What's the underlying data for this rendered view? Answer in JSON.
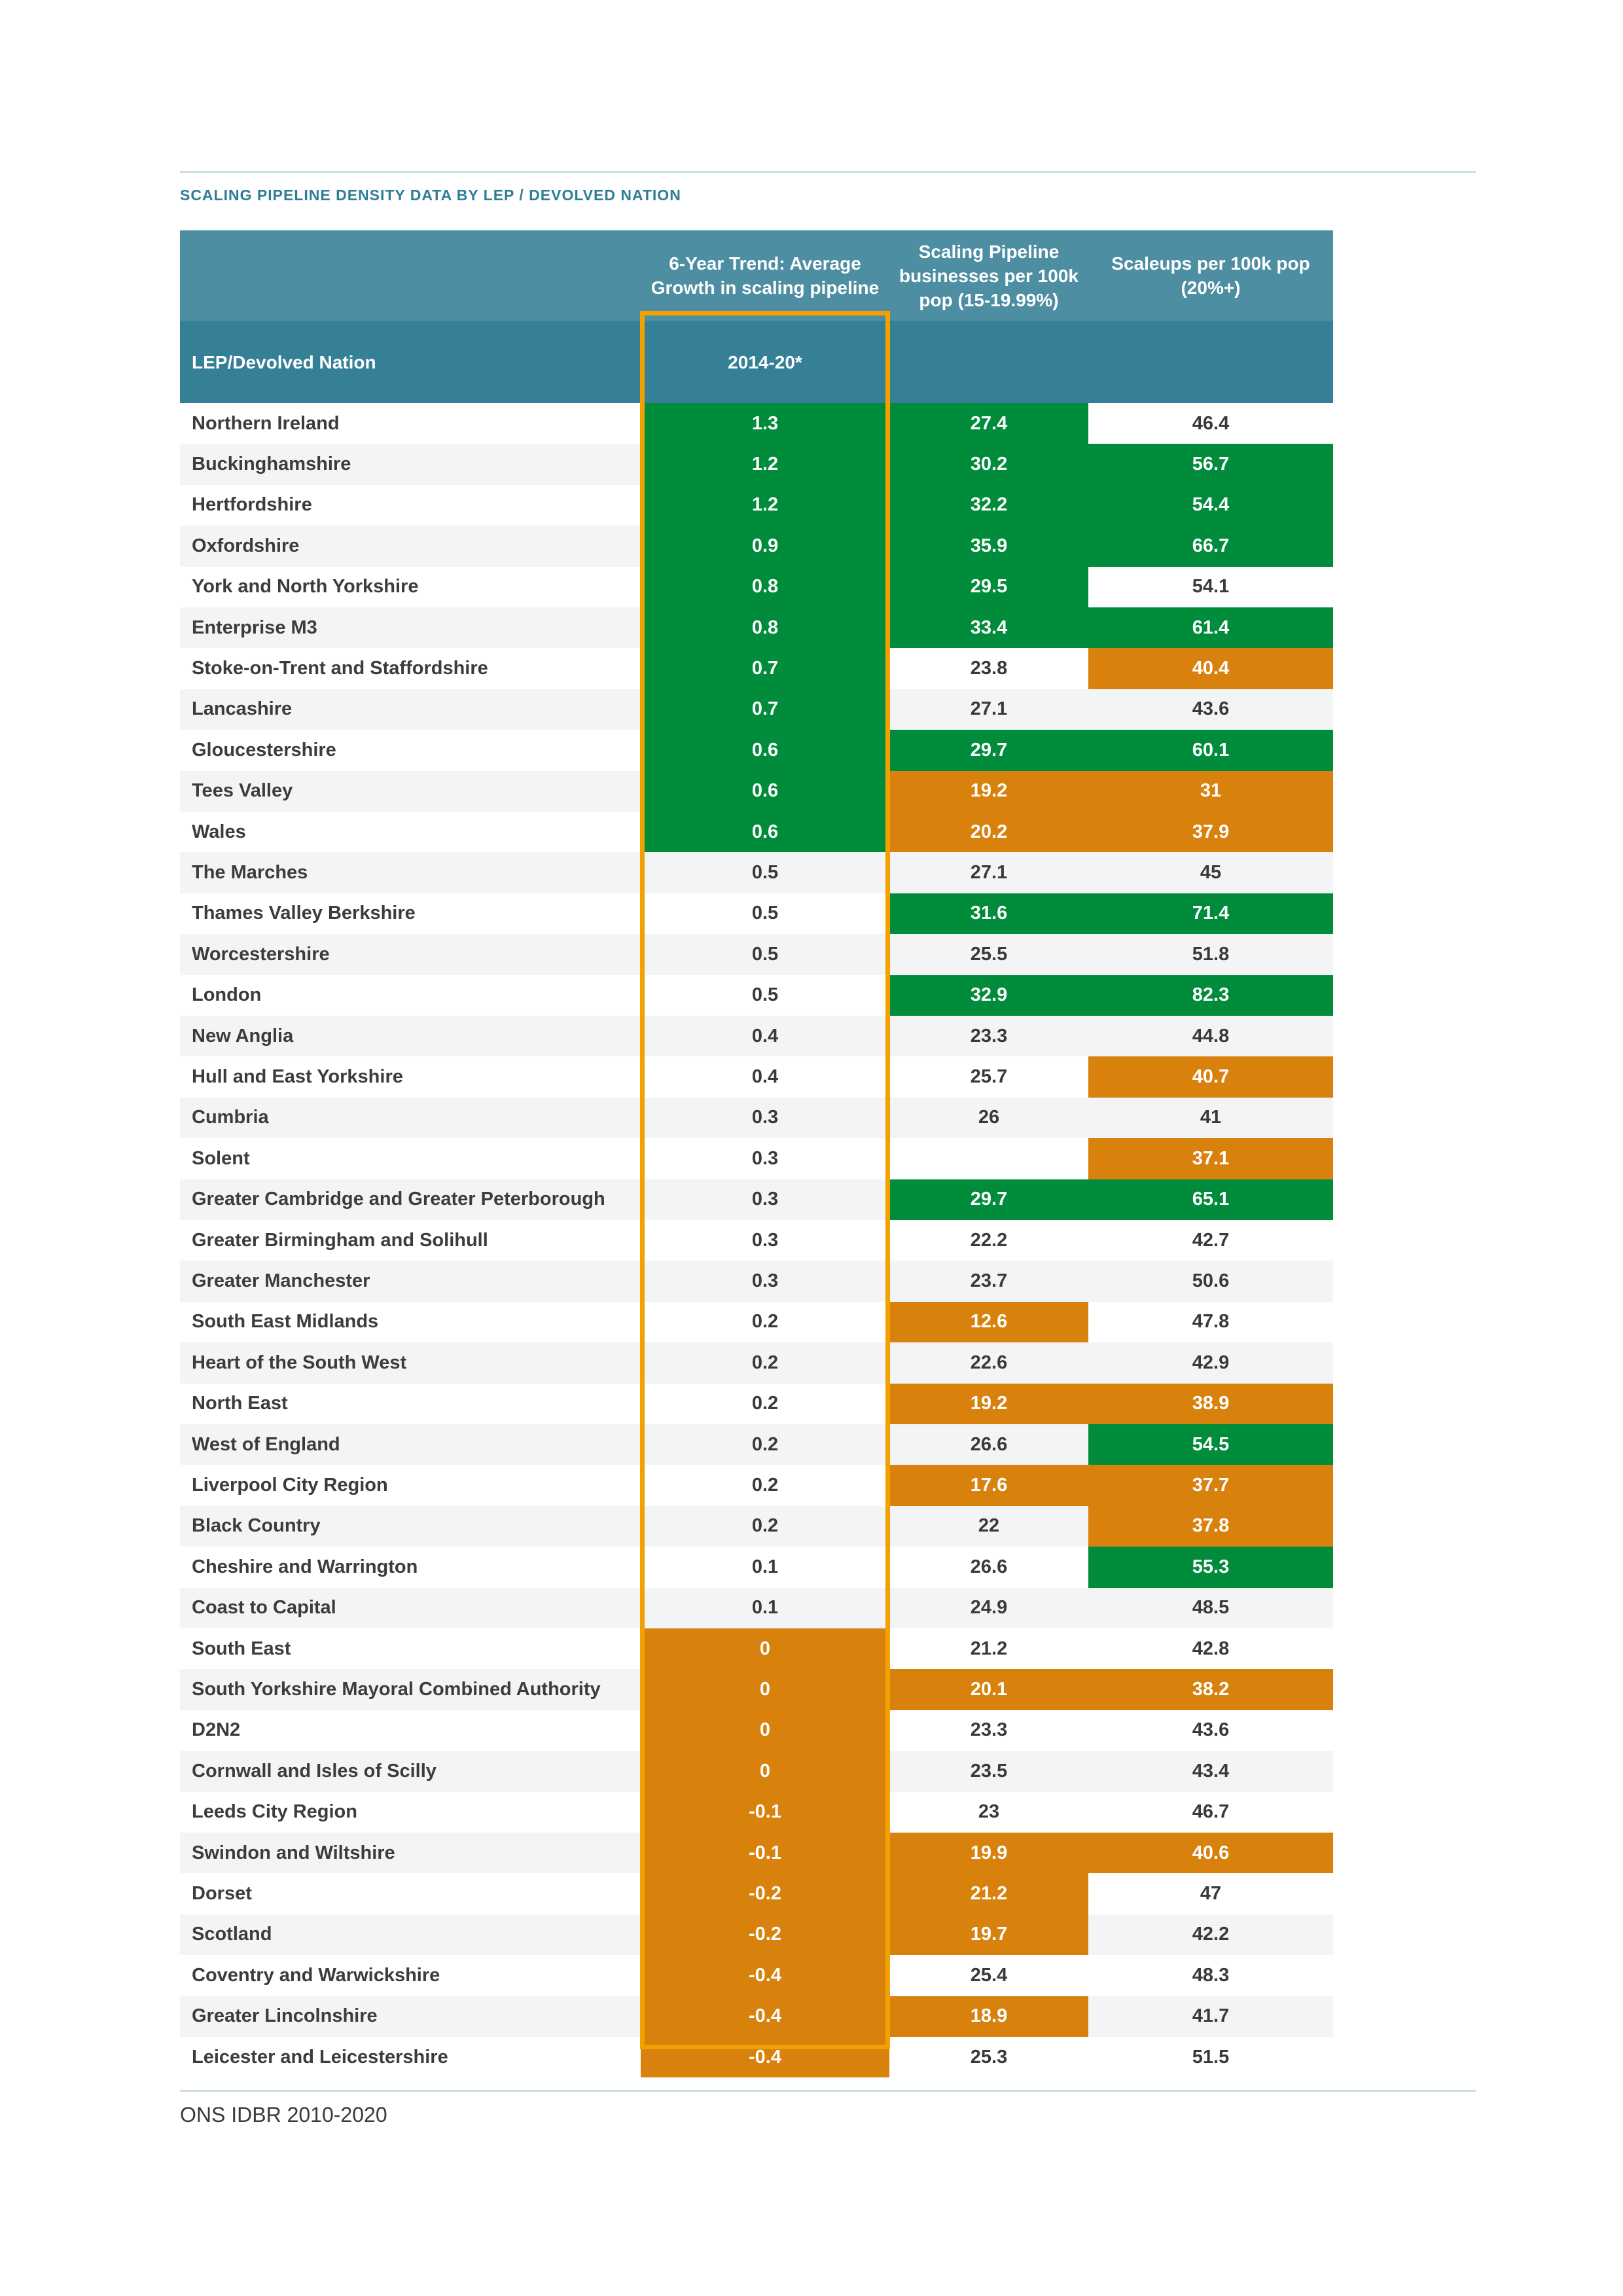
{
  "section_title": "SCALING PIPELINE DENSITY DATA BY LEP / DEVOLVED NATION",
  "header": {
    "col_trend": "6-Year Trend: Average Growth in scaling pipeline",
    "col_pipeline": "Scaling Pipeline businesses per 100k pop (15-19.99%)",
    "col_scaleups": "Scaleups per 100k pop (20%+)",
    "col_name_sub": "LEP/Devolved Nation",
    "col_trend_sub": "2014-20*"
  },
  "colors": {
    "green": "#008c3b",
    "orange": "#d8810c",
    "header_light": "#4e8ea2",
    "header_dark": "#357f97",
    "highlight_border": "#f2a100"
  },
  "rows": [
    {
      "name": "Northern Ireland",
      "trend": "1.3",
      "trend_c": "g",
      "pipeline": "27.4",
      "pipeline_c": "g",
      "scaleups": "46.4",
      "scaleups_c": "w"
    },
    {
      "name": "Buckinghamshire",
      "trend": "1.2",
      "trend_c": "g",
      "pipeline": "30.2",
      "pipeline_c": "g",
      "scaleups": "56.7",
      "scaleups_c": "g"
    },
    {
      "name": "Hertfordshire",
      "trend": "1.2",
      "trend_c": "g",
      "pipeline": "32.2",
      "pipeline_c": "g",
      "scaleups": "54.4",
      "scaleups_c": "g"
    },
    {
      "name": "Oxfordshire",
      "trend": "0.9",
      "trend_c": "g",
      "pipeline": "35.9",
      "pipeline_c": "g",
      "scaleups": "66.7",
      "scaleups_c": "g"
    },
    {
      "name": "York and North Yorkshire",
      "trend": "0.8",
      "trend_c": "g",
      "pipeline": "29.5",
      "pipeline_c": "g",
      "scaleups": "54.1",
      "scaleups_c": "w"
    },
    {
      "name": "Enterprise M3",
      "trend": "0.8",
      "trend_c": "g",
      "pipeline": "33.4",
      "pipeline_c": "g",
      "scaleups": "61.4",
      "scaleups_c": "g"
    },
    {
      "name": "Stoke-on-Trent and Staffordshire",
      "trend": "0.7",
      "trend_c": "g",
      "pipeline": "23.8",
      "pipeline_c": "w",
      "scaleups": "40.4",
      "scaleups_c": "o"
    },
    {
      "name": "Lancashire",
      "trend": "0.7",
      "trend_c": "g",
      "pipeline": "27.1",
      "pipeline_c": "w",
      "scaleups": "43.6",
      "scaleups_c": "w"
    },
    {
      "name": "Gloucestershire",
      "trend": "0.6",
      "trend_c": "g",
      "pipeline": "29.7",
      "pipeline_c": "g",
      "scaleups": "60.1",
      "scaleups_c": "g"
    },
    {
      "name": "Tees Valley",
      "trend": "0.6",
      "trend_c": "g",
      "pipeline": "19.2",
      "pipeline_c": "o",
      "scaleups": "31",
      "scaleups_c": "o"
    },
    {
      "name": "Wales",
      "trend": "0.6",
      "trend_c": "g",
      "pipeline": "20.2",
      "pipeline_c": "o",
      "scaleups": "37.9",
      "scaleups_c": "o"
    },
    {
      "name": "The Marches",
      "trend": "0.5",
      "trend_c": "w",
      "pipeline": "27.1",
      "pipeline_c": "w",
      "scaleups": "45",
      "scaleups_c": "w"
    },
    {
      "name": "Thames Valley Berkshire",
      "trend": "0.5",
      "trend_c": "w",
      "pipeline": "31.6",
      "pipeline_c": "g",
      "scaleups": "71.4",
      "scaleups_c": "g"
    },
    {
      "name": "Worcestershire",
      "trend": "0.5",
      "trend_c": "w",
      "pipeline": "25.5",
      "pipeline_c": "w",
      "scaleups": "51.8",
      "scaleups_c": "w"
    },
    {
      "name": "London",
      "trend": "0.5",
      "trend_c": "w",
      "pipeline": "32.9",
      "pipeline_c": "g",
      "scaleups": "82.3",
      "scaleups_c": "g"
    },
    {
      "name": "New Anglia",
      "trend": "0.4",
      "trend_c": "w",
      "pipeline": "23.3",
      "pipeline_c": "w",
      "scaleups": "44.8",
      "scaleups_c": "w"
    },
    {
      "name": "Hull and East Yorkshire",
      "trend": "0.4",
      "trend_c": "w",
      "pipeline": "25.7",
      "pipeline_c": "w",
      "scaleups": "40.7",
      "scaleups_c": "o"
    },
    {
      "name": "Cumbria",
      "trend": "0.3",
      "trend_c": "w",
      "pipeline": "26",
      "pipeline_c": "w",
      "scaleups": "41",
      "scaleups_c": "w"
    },
    {
      "name": "Solent",
      "trend": "0.3",
      "trend_c": "w",
      "pipeline": "",
      "pipeline_c": "w",
      "scaleups": "37.1",
      "scaleups_c": "o"
    },
    {
      "name": "Greater Cambridge and Greater Peterborough",
      "trend": "0.3",
      "trend_c": "w",
      "pipeline": "29.7",
      "pipeline_c": "g",
      "scaleups": "65.1",
      "scaleups_c": "g"
    },
    {
      "name": "Greater Birmingham and Solihull",
      "trend": "0.3",
      "trend_c": "w",
      "pipeline": "22.2",
      "pipeline_c": "w",
      "scaleups": "42.7",
      "scaleups_c": "w"
    },
    {
      "name": "Greater Manchester",
      "trend": "0.3",
      "trend_c": "w",
      "pipeline": "23.7",
      "pipeline_c": "w",
      "scaleups": "50.6",
      "scaleups_c": "w"
    },
    {
      "name": "South East Midlands",
      "trend": "0.2",
      "trend_c": "w",
      "pipeline": "12.6",
      "pipeline_c": "o",
      "scaleups": "47.8",
      "scaleups_c": "w"
    },
    {
      "name": "Heart of the South West",
      "trend": "0.2",
      "trend_c": "w",
      "pipeline": "22.6",
      "pipeline_c": "w",
      "scaleups": "42.9",
      "scaleups_c": "w"
    },
    {
      "name": "North East",
      "trend": "0.2",
      "trend_c": "w",
      "pipeline": "19.2",
      "pipeline_c": "o",
      "scaleups": "38.9",
      "scaleups_c": "o"
    },
    {
      "name": "West of England",
      "trend": "0.2",
      "trend_c": "w",
      "pipeline": "26.6",
      "pipeline_c": "w",
      "scaleups": "54.5",
      "scaleups_c": "g"
    },
    {
      "name": "Liverpool City Region",
      "trend": "0.2",
      "trend_c": "w",
      "pipeline": "17.6",
      "pipeline_c": "o",
      "scaleups": "37.7",
      "scaleups_c": "o"
    },
    {
      "name": "Black Country",
      "trend": "0.2",
      "trend_c": "w",
      "pipeline": "22",
      "pipeline_c": "w",
      "scaleups": "37.8",
      "scaleups_c": "o"
    },
    {
      "name": "Cheshire and Warrington",
      "trend": "0.1",
      "trend_c": "w",
      "pipeline": "26.6",
      "pipeline_c": "w",
      "scaleups": "55.3",
      "scaleups_c": "g"
    },
    {
      "name": "Coast to Capital",
      "trend": "0.1",
      "trend_c": "w",
      "pipeline": "24.9",
      "pipeline_c": "w",
      "scaleups": "48.5",
      "scaleups_c": "w"
    },
    {
      "name": "South East",
      "trend": "0",
      "trend_c": "o",
      "pipeline": "21.2",
      "pipeline_c": "w",
      "scaleups": "42.8",
      "scaleups_c": "w"
    },
    {
      "name": "South Yorkshire Mayoral Combined Authority",
      "trend": "0",
      "trend_c": "o",
      "pipeline": "20.1",
      "pipeline_c": "o",
      "scaleups": "38.2",
      "scaleups_c": "o"
    },
    {
      "name": "D2N2",
      "trend": "0",
      "trend_c": "o",
      "pipeline": "23.3",
      "pipeline_c": "w",
      "scaleups": "43.6",
      "scaleups_c": "w"
    },
    {
      "name": "Cornwall and Isles of Scilly",
      "trend": "0",
      "trend_c": "o",
      "pipeline": "23.5",
      "pipeline_c": "w",
      "scaleups": "43.4",
      "scaleups_c": "w"
    },
    {
      "name": "Leeds City Region",
      "trend": "-0.1",
      "trend_c": "o",
      "pipeline": "23",
      "pipeline_c": "w",
      "scaleups": "46.7",
      "scaleups_c": "w"
    },
    {
      "name": "Swindon and Wiltshire",
      "trend": "-0.1",
      "trend_c": "o",
      "pipeline": "19.9",
      "pipeline_c": "o",
      "scaleups": "40.6",
      "scaleups_c": "o"
    },
    {
      "name": "Dorset",
      "trend": "-0.2",
      "trend_c": "o",
      "pipeline": "21.2",
      "pipeline_c": "o",
      "scaleups": "47",
      "scaleups_c": "w"
    },
    {
      "name": "Scotland",
      "trend": "-0.2",
      "trend_c": "o",
      "pipeline": "19.7",
      "pipeline_c": "o",
      "scaleups": "42.2",
      "scaleups_c": "w"
    },
    {
      "name": "Coventry and Warwickshire",
      "trend": "-0.4",
      "trend_c": "o",
      "pipeline": "25.4",
      "pipeline_c": "w",
      "scaleups": "48.3",
      "scaleups_c": "w"
    },
    {
      "name": "Greater Lincolnshire",
      "trend": "-0.4",
      "trend_c": "o",
      "pipeline": "18.9",
      "pipeline_c": "o",
      "scaleups": "41.7",
      "scaleups_c": "w"
    },
    {
      "name": "Leicester and Leicestershire",
      "trend": "-0.4",
      "trend_c": "o",
      "pipeline": "25.3",
      "pipeline_c": "w",
      "scaleups": "51.5",
      "scaleups_c": "w"
    }
  ],
  "source": "ONS IDBR 2010-2020"
}
